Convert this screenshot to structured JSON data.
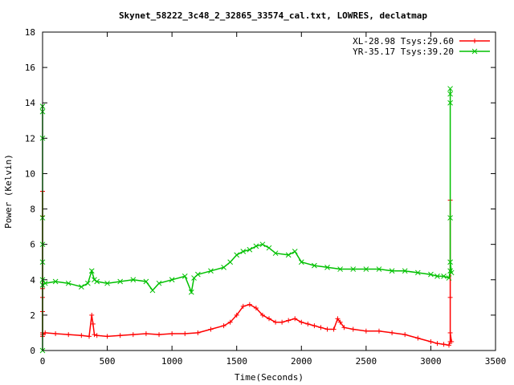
{
  "chart_data": {
    "type": "line",
    "title": "Skynet_58222_3c48_2_32865_33574_cal.txt, LOWRES, declatmap",
    "xlabel": "Time(Seconds)",
    "ylabel": "Power (Kelvin)",
    "xlim": [
      0,
      3500
    ],
    "ylim": [
      0,
      18
    ],
    "xticks": [
      "0",
      "500",
      "1000",
      "1500",
      "2000",
      "2500",
      "3000",
      "3500"
    ],
    "yticks": [
      "0",
      "2",
      "4",
      "6",
      "8",
      "10",
      "12",
      "14",
      "16",
      "18"
    ],
    "grid": false,
    "legend_position": "top-right",
    "series": [
      {
        "name": "XL-28.98 Tsys:29.60",
        "color": "#ff0000",
        "marker": "plus",
        "x": [
          0,
          0,
          0,
          0,
          0,
          0,
          0,
          0,
          20,
          100,
          200,
          300,
          360,
          380,
          390,
          400,
          420,
          500,
          600,
          700,
          800,
          900,
          1000,
          1100,
          1200,
          1300,
          1400,
          1450,
          1500,
          1550,
          1600,
          1650,
          1700,
          1750,
          1800,
          1850,
          1900,
          1950,
          2000,
          2050,
          2100,
          2150,
          2200,
          2250,
          2280,
          2300,
          2330,
          2400,
          2500,
          2600,
          2700,
          2800,
          2900,
          3000,
          3050,
          3100,
          3140,
          3150,
          3150,
          3150,
          3150,
          3160
        ],
        "y": [
          0.8,
          2.2,
          3.5,
          7.6,
          9.0,
          3.0,
          1.0,
          0.9,
          1.0,
          0.95,
          0.9,
          0.85,
          0.8,
          2.0,
          1.5,
          0.9,
          0.85,
          0.8,
          0.85,
          0.9,
          0.95,
          0.9,
          0.95,
          0.95,
          1.0,
          1.2,
          1.4,
          1.6,
          2.0,
          2.5,
          2.6,
          2.4,
          2.0,
          1.8,
          1.6,
          1.6,
          1.7,
          1.8,
          1.6,
          1.5,
          1.4,
          1.3,
          1.2,
          1.2,
          1.8,
          1.6,
          1.3,
          1.2,
          1.1,
          1.1,
          1.0,
          0.9,
          0.7,
          0.5,
          0.4,
          0.35,
          0.3,
          0.5,
          3.0,
          8.5,
          1.0,
          0.5
        ]
      },
      {
        "name": "YR-35.17 Tsys:39.20",
        "color": "#00c000",
        "marker": "cross",
        "x": [
          0,
          0,
          0,
          0,
          0,
          0,
          0,
          0,
          0,
          20,
          100,
          200,
          300,
          350,
          380,
          400,
          420,
          500,
          600,
          700,
          800,
          850,
          900,
          1000,
          1100,
          1150,
          1170,
          1200,
          1300,
          1400,
          1450,
          1500,
          1550,
          1600,
          1650,
          1700,
          1750,
          1800,
          1900,
          1950,
          2000,
          2100,
          2200,
          2300,
          2400,
          2500,
          2600,
          2700,
          2800,
          2900,
          3000,
          3050,
          3100,
          3140,
          3150,
          3150,
          3150,
          3150,
          3150,
          3150,
          3160
        ],
        "y": [
          0.0,
          5.0,
          6.0,
          12.0,
          13.5,
          13.8,
          7.5,
          4.0,
          3.7,
          3.8,
          3.9,
          3.8,
          3.6,
          3.8,
          4.5,
          4.0,
          3.9,
          3.8,
          3.9,
          4.0,
          3.9,
          3.4,
          3.8,
          4.0,
          4.2,
          3.3,
          4.1,
          4.3,
          4.5,
          4.7,
          5.0,
          5.4,
          5.6,
          5.7,
          5.9,
          6.0,
          5.8,
          5.5,
          5.4,
          5.6,
          5.0,
          4.8,
          4.7,
          4.6,
          4.6,
          4.6,
          4.6,
          4.5,
          4.5,
          4.4,
          4.3,
          4.2,
          4.2,
          4.1,
          4.5,
          7.5,
          14.0,
          14.8,
          14.5,
          5.0,
          4.4
        ]
      }
    ]
  }
}
